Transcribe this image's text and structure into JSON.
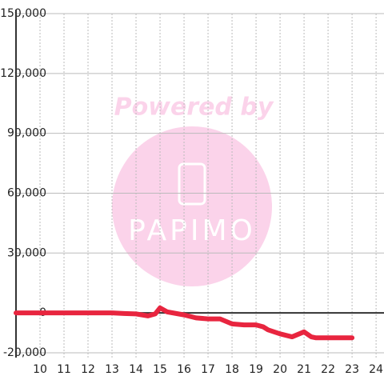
{
  "chart_data": {
    "type": "line",
    "watermark": [
      "Powered by",
      "PAPIMO"
    ],
    "x": [
      9,
      10,
      11,
      12,
      13,
      13.5,
      14,
      14.5,
      14.8,
      15,
      15.3,
      16,
      16.5,
      17,
      17.5,
      18,
      18.5,
      19,
      19.3,
      19.5,
      20,
      20.5,
      21,
      21.3,
      21.5,
      22,
      23
    ],
    "series": [
      {
        "name": "",
        "color": "#e8253f",
        "values": [
          0,
          0,
          0,
          0,
          0,
          -300,
          -500,
          -1500,
          -500,
          2500,
          500,
          -1000,
          -2500,
          -3000,
          -3000,
          -5500,
          -6000,
          -6000,
          -7000,
          -8500,
          -10500,
          -12000,
          -9500,
          -12000,
          -12500,
          -12500,
          -12500
        ]
      }
    ],
    "xlim": [
      9,
      24.33
    ],
    "xticks": [
      10,
      11,
      12,
      13,
      14,
      15,
      16,
      17,
      18,
      19,
      20,
      21,
      22,
      23,
      24
    ],
    "ylim": [
      -20000,
      150000
    ],
    "yticks": [
      {
        "value": -20000,
        "label": "-20,000"
      },
      0,
      {
        "value": 30000,
        "label": "30,000"
      },
      {
        "value": 60000,
        "label": "60,000"
      },
      {
        "value": 90000,
        "label": "90,000"
      },
      {
        "value": 120000,
        "label": "120,000"
      },
      {
        "value": 150000,
        "label": "150,000"
      }
    ],
    "grid": true
  }
}
